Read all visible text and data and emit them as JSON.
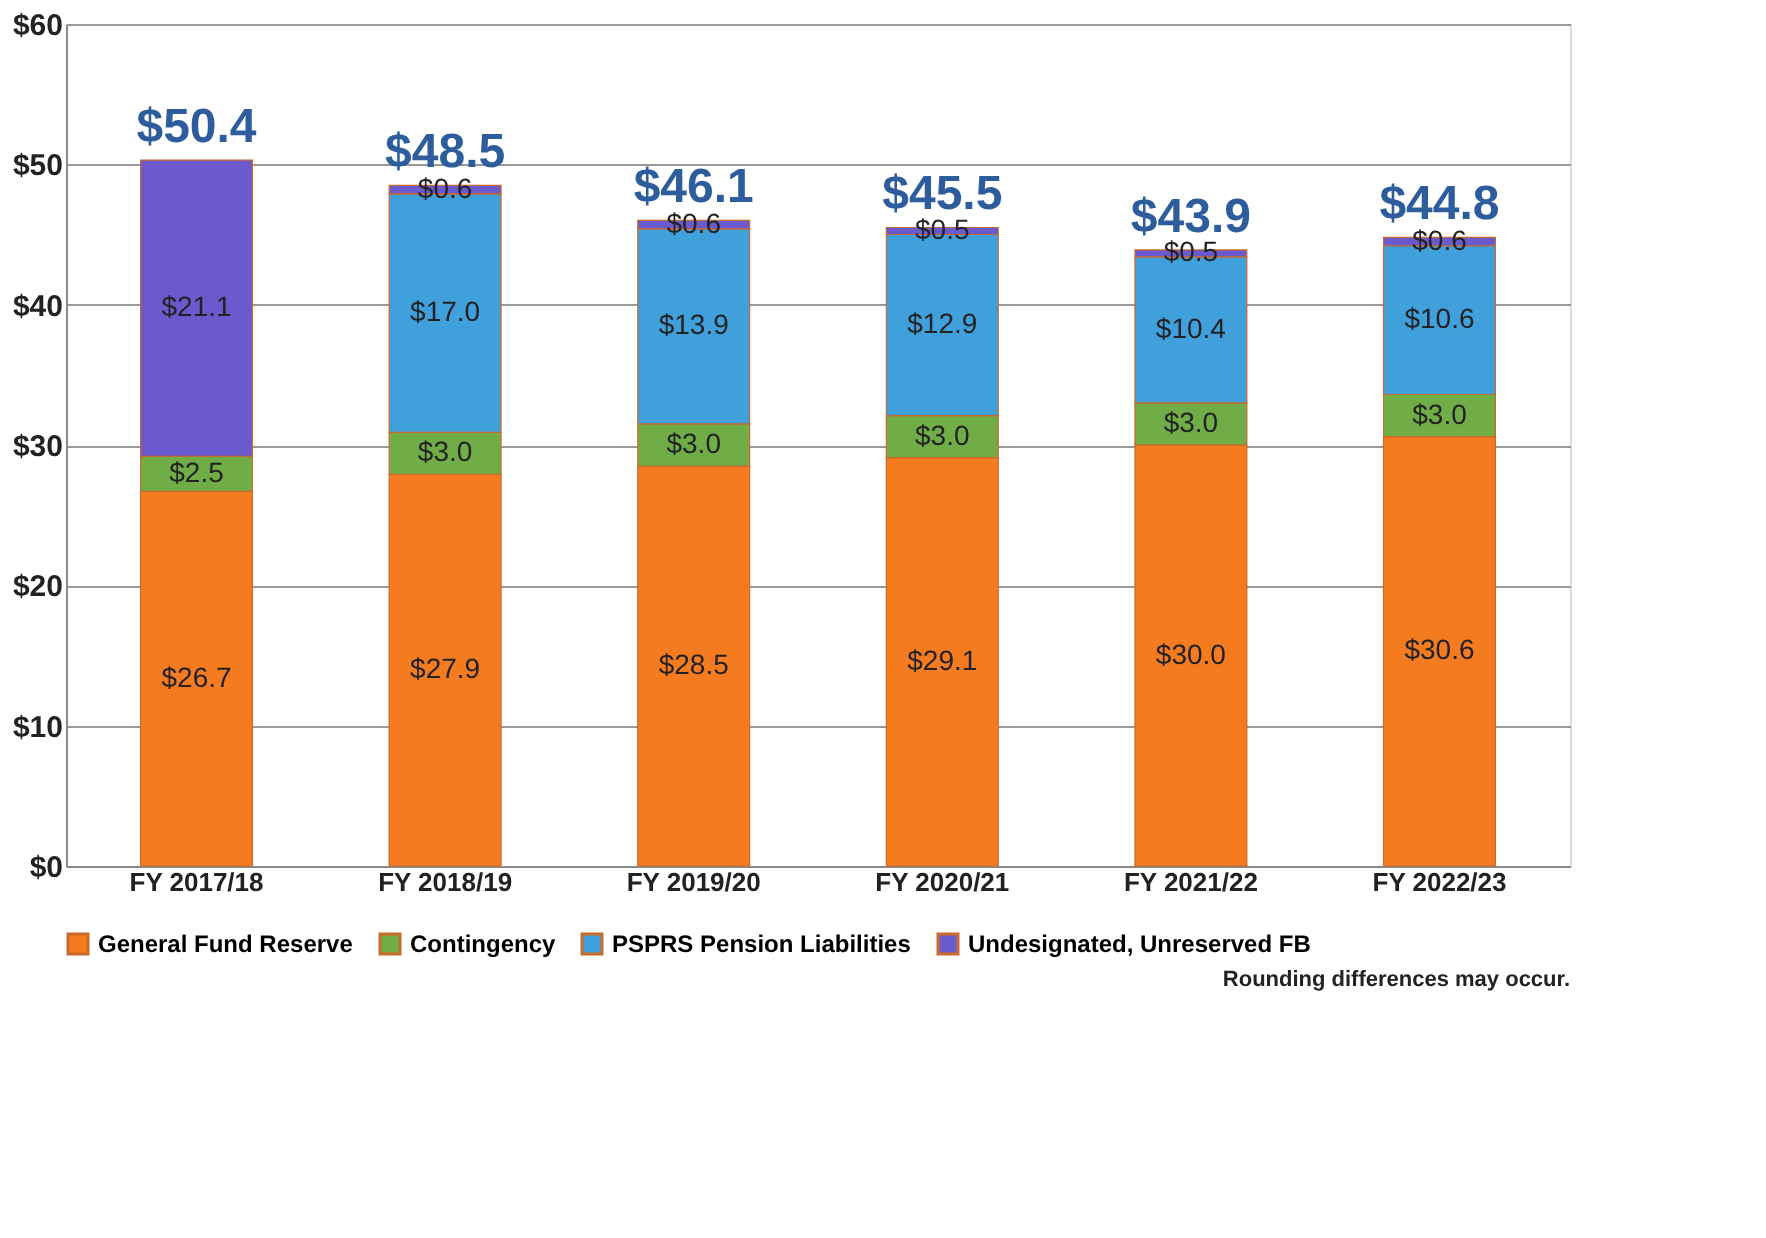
{
  "chart_data": {
    "type": "bar",
    "stacked": true,
    "categories": [
      "FY 2017/18",
      "FY 2018/19",
      "FY 2019/20",
      "FY 2020/21",
      "FY 2021/22",
      "FY 2022/23"
    ],
    "series": [
      {
        "name": "General Fund Reserve",
        "color": "#f47b20",
        "values": [
          26.7,
          27.9,
          28.5,
          29.1,
          30.0,
          30.6
        ],
        "value_labels": [
          "$26.7",
          "$27.9",
          "$28.5",
          "$29.1",
          "$30.0",
          "$30.6"
        ]
      },
      {
        "name": "Contingency",
        "color": "#70ad47",
        "values": [
          2.5,
          3.0,
          3.0,
          3.0,
          3.0,
          3.0
        ],
        "value_labels": [
          "$2.5",
          "$3.0",
          "$3.0",
          "$3.0",
          "$3.0",
          "$3.0"
        ]
      },
      {
        "name": "PSPRS Pension Liabilities",
        "color": "#3fa0dc",
        "values": [
          null,
          17.0,
          13.9,
          12.9,
          10.4,
          10.6
        ],
        "value_labels": [
          null,
          "$17.0",
          "$13.9",
          "$12.9",
          "$10.4",
          "$10.6"
        ]
      },
      {
        "name": "Undesignated, Unreserved FB",
        "color": "#6a5acd",
        "values": [
          21.1,
          0.6,
          0.6,
          0.5,
          0.5,
          0.6
        ],
        "value_labels": [
          "$21.1",
          "$0.6",
          "$0.6",
          "$0.5",
          "$0.5",
          "$0.6"
        ]
      }
    ],
    "totals": [
      "$50.4",
      "$48.5",
      "$46.1",
      "$45.5",
      "$43.9",
      "$44.8"
    ],
    "ylim": [
      0,
      60
    ],
    "yticks": [
      {
        "value": 0,
        "label": "$0"
      },
      {
        "value": 10,
        "label": "$10"
      },
      {
        "value": 20,
        "label": "$20"
      },
      {
        "value": 30,
        "label": "$30"
      },
      {
        "value": 40,
        "label": "$40"
      },
      {
        "value": 50,
        "label": "$50"
      },
      {
        "value": 60,
        "label": "$60"
      }
    ],
    "grid": "y",
    "legend": "bottom",
    "annotations": [
      "Rounding differences may occur."
    ]
  }
}
